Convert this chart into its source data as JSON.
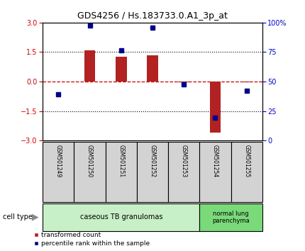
{
  "title": "GDS4256 / Hs.183733.0.A1_3p_at",
  "samples": [
    "GSM501249",
    "GSM501250",
    "GSM501251",
    "GSM501252",
    "GSM501253",
    "GSM501254",
    "GSM501255"
  ],
  "red_bars": [
    0.0,
    1.6,
    1.25,
    1.35,
    -0.05,
    -2.6,
    -0.05
  ],
  "blue_squares": [
    -0.65,
    2.85,
    1.6,
    2.75,
    -0.15,
    -1.85,
    -0.45
  ],
  "ylim_left": [
    -3,
    3
  ],
  "yticks_left": [
    -3,
    -1.5,
    0,
    1.5,
    3
  ],
  "yticks_right_vals": [
    0,
    25,
    50,
    75,
    100
  ],
  "yticks_right_labels": [
    "0",
    "25",
    "50",
    "75",
    "100%"
  ],
  "hline_y": 0.0,
  "dotted_lines": [
    -1.5,
    1.5
  ],
  "bar_color": "#b22222",
  "square_color": "#00008b",
  "hline_color": "#cc0000",
  "plot_bg": "#ffffff",
  "axis_bg": "#ffffff",
  "left_label_color": "#cc0000",
  "right_label_color": "#0000cc",
  "group1_label": "caseous TB granulomas",
  "group2_label": "normal lung\nparenchyma",
  "group1_indices": [
    0,
    1,
    2,
    3,
    4
  ],
  "group2_indices": [
    5,
    6
  ],
  "cell_type_label": "cell type",
  "legend_red": "transformed count",
  "legend_blue": "percentile rank within the sample",
  "bar_width": 0.35,
  "group1_color": "#c8f0c8",
  "group2_color": "#7ada7a",
  "sample_box_color": "#d3d3d3"
}
